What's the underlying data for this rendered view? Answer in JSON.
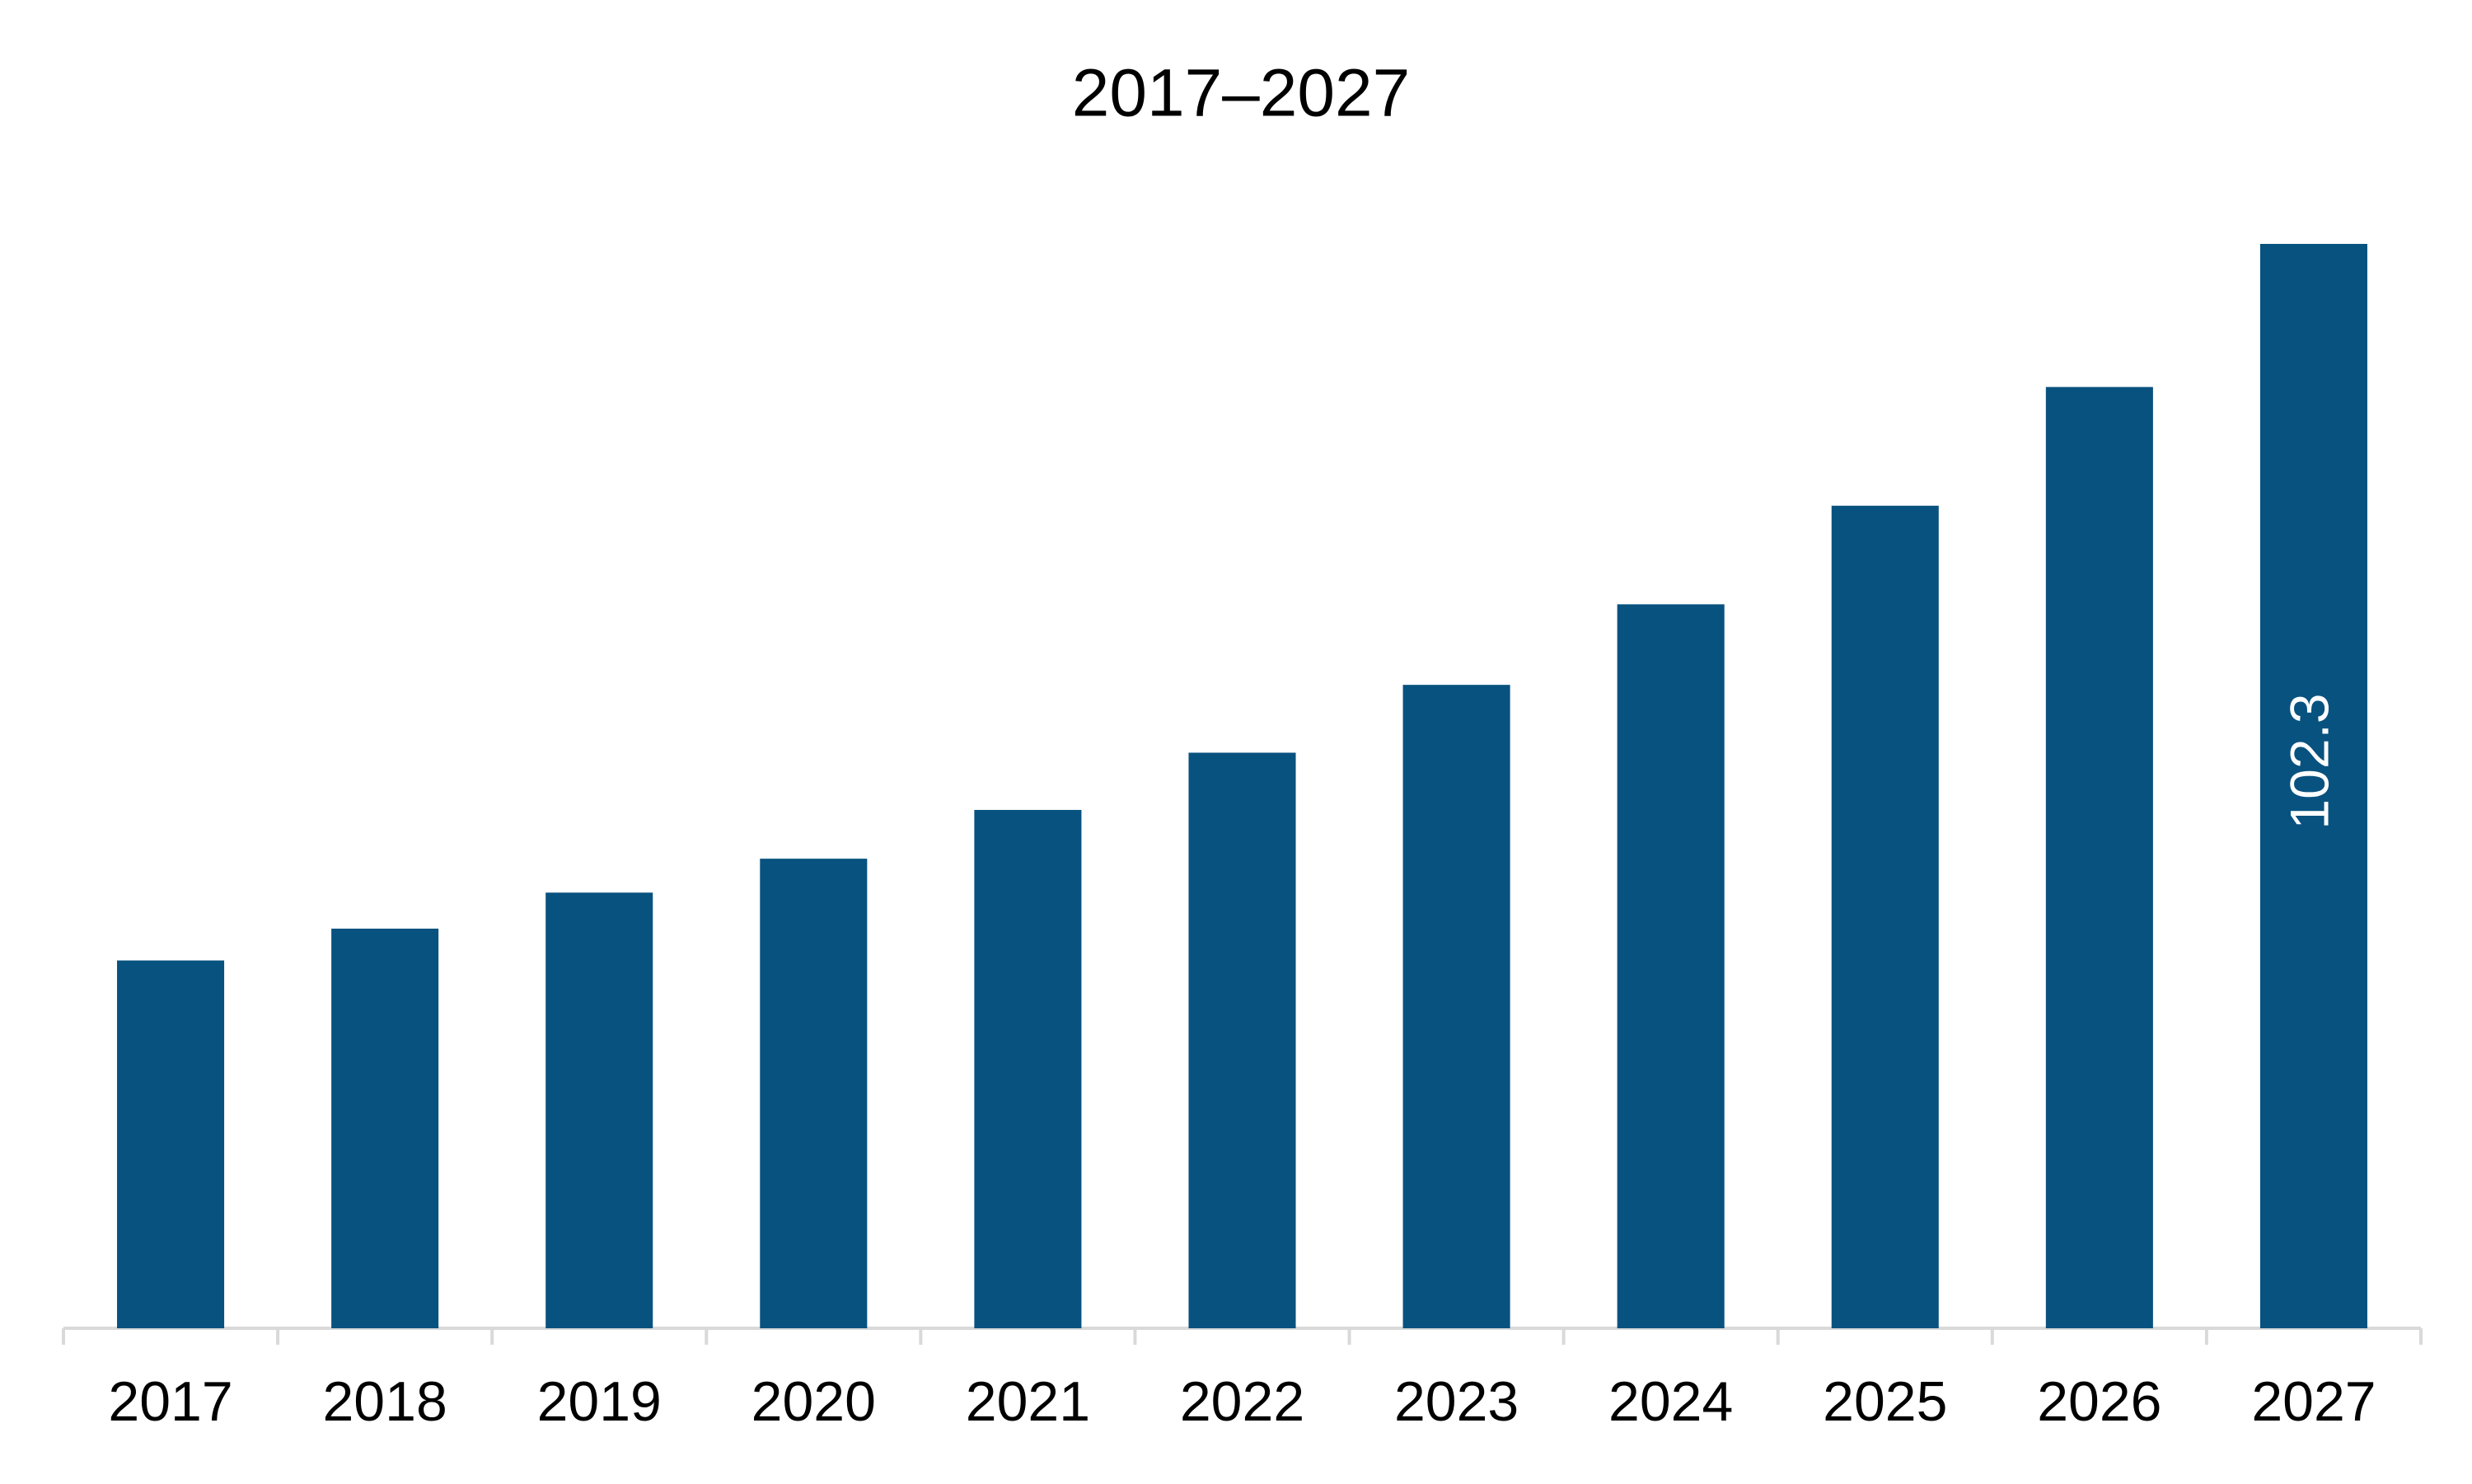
{
  "chart_data": {
    "type": "bar",
    "title": "2017–2027",
    "categories": [
      "2017",
      "2018",
      "2019",
      "2020",
      "2021",
      "2022",
      "2023",
      "2024",
      "2025",
      "2026",
      "2027"
    ],
    "values": [
      34.7,
      37.7,
      41.1,
      44.3,
      48.9,
      54.3,
      60.7,
      68.3,
      77.6,
      88.8,
      102.3
    ],
    "value_labels": [
      null,
      null,
      null,
      null,
      null,
      null,
      null,
      null,
      null,
      null,
      "102.3"
    ],
    "color": "#08527f",
    "grid": false
  }
}
